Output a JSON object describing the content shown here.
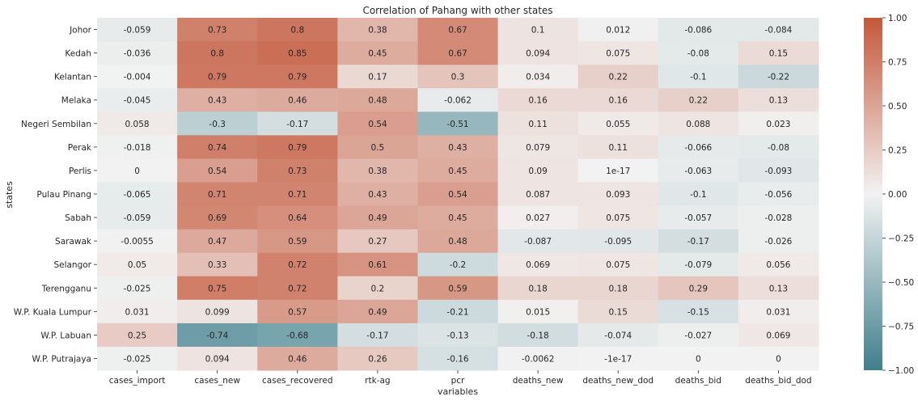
{
  "chart_data": {
    "type": "heatmap",
    "title": "Correlation of Pahang with other states",
    "xlabel": "variables",
    "ylabel": "states",
    "columns": [
      "cases_import",
      "cases_new",
      "cases_recovered",
      "rtk-ag",
      "pcr",
      "deaths_new",
      "deaths_new_dod",
      "deaths_bid",
      "deaths_bid_dod"
    ],
    "rows": [
      "Johor",
      "Kedah",
      "Kelantan",
      "Melaka",
      "Negeri Sembilan",
      "Perak",
      "Perlis",
      "Pulau Pinang",
      "Sabah",
      "Sarawak",
      "Selangor",
      "Terengganu",
      "W.P. Kuala Lumpur",
      "W.P. Labuan",
      "W.P. Putrajaya"
    ],
    "values": [
      [
        -0.059,
        0.73,
        0.8,
        0.38,
        0.67,
        0.1,
        0.012,
        -0.086,
        -0.084
      ],
      [
        -0.036,
        0.8,
        0.85,
        0.45,
        0.67,
        0.094,
        0.075,
        -0.08,
        0.15
      ],
      [
        -0.004,
        0.79,
        0.79,
        0.17,
        0.3,
        0.034,
        0.22,
        -0.1,
        -0.22
      ],
      [
        -0.045,
        0.43,
        0.46,
        0.48,
        -0.062,
        0.16,
        0.16,
        0.22,
        0.13
      ],
      [
        0.058,
        -0.3,
        -0.17,
        0.54,
        -0.51,
        0.11,
        0.055,
        0.088,
        0.023
      ],
      [
        -0.018,
        0.74,
        0.79,
        0.5,
        0.43,
        0.079,
        0.11,
        -0.066,
        -0.08
      ],
      [
        0,
        0.54,
        0.73,
        0.38,
        0.45,
        0.09,
        1e-17,
        -0.063,
        -0.093
      ],
      [
        -0.065,
        0.71,
        0.71,
        0.43,
        0.54,
        0.087,
        0.093,
        -0.1,
        -0.056
      ],
      [
        -0.059,
        0.69,
        0.64,
        0.49,
        0.45,
        0.027,
        0.075,
        -0.057,
        -0.028
      ],
      [
        -0.0055,
        0.47,
        0.59,
        0.27,
        0.48,
        -0.087,
        -0.095,
        -0.17,
        -0.026
      ],
      [
        0.05,
        0.33,
        0.72,
        0.61,
        -0.2,
        0.069,
        0.075,
        -0.079,
        0.056
      ],
      [
        -0.025,
        0.75,
        0.72,
        0.2,
        0.59,
        0.18,
        0.18,
        0.29,
        0.13
      ],
      [
        0.031,
        0.099,
        0.57,
        0.49,
        -0.21,
        0.015,
        0.15,
        -0.15,
        0.031
      ],
      [
        0.25,
        -0.74,
        -0.68,
        -0.17,
        -0.13,
        -0.18,
        -0.074,
        -0.027,
        0.069
      ],
      [
        -0.025,
        0.094,
        0.46,
        0.26,
        -0.16,
        -0.0062,
        -1e-17,
        0,
        0
      ]
    ],
    "labels": [
      [
        "-0.059",
        "0.73",
        "0.8",
        "0.38",
        "0.67",
        "0.1",
        "0.012",
        "-0.086",
        "-0.084"
      ],
      [
        "-0.036",
        "0.8",
        "0.85",
        "0.45",
        "0.67",
        "0.094",
        "0.075",
        "-0.08",
        "0.15"
      ],
      [
        "-0.004",
        "0.79",
        "0.79",
        "0.17",
        "0.3",
        "0.034",
        "0.22",
        "-0.1",
        "-0.22"
      ],
      [
        "-0.045",
        "0.43",
        "0.46",
        "0.48",
        "-0.062",
        "0.16",
        "0.16",
        "0.22",
        "0.13"
      ],
      [
        "0.058",
        "-0.3",
        "-0.17",
        "0.54",
        "-0.51",
        "0.11",
        "0.055",
        "0.088",
        "0.023"
      ],
      [
        "-0.018",
        "0.74",
        "0.79",
        "0.5",
        "0.43",
        "0.079",
        "0.11",
        "-0.066",
        "-0.08"
      ],
      [
        "0",
        "0.54",
        "0.73",
        "0.38",
        "0.45",
        "0.09",
        "1e-17",
        "-0.063",
        "-0.093"
      ],
      [
        "-0.065",
        "0.71",
        "0.71",
        "0.43",
        "0.54",
        "0.087",
        "0.093",
        "-0.1",
        "-0.056"
      ],
      [
        "-0.059",
        "0.69",
        "0.64",
        "0.49",
        "0.45",
        "0.027",
        "0.075",
        "-0.057",
        "-0.028"
      ],
      [
        "-0.0055",
        "0.47",
        "0.59",
        "0.27",
        "0.48",
        "-0.087",
        "-0.095",
        "-0.17",
        "-0.026"
      ],
      [
        "0.05",
        "0.33",
        "0.72",
        "0.61",
        "-0.2",
        "0.069",
        "0.075",
        "-0.079",
        "0.056"
      ],
      [
        "-0.025",
        "0.75",
        "0.72",
        "0.2",
        "0.59",
        "0.18",
        "0.18",
        "0.29",
        "0.13"
      ],
      [
        "0.031",
        "0.099",
        "0.57",
        "0.49",
        "-0.21",
        "0.015",
        "0.15",
        "-0.15",
        "0.031"
      ],
      [
        "0.25",
        "-0.74",
        "-0.68",
        "-0.17",
        "-0.13",
        "-0.18",
        "-0.074",
        "-0.027",
        "0.069"
      ],
      [
        "-0.025",
        "0.094",
        "0.46",
        "0.26",
        "-0.16",
        "-0.0062",
        "-1e-17",
        "0",
        "0"
      ]
    ],
    "colorbar": {
      "vmin": -1.0,
      "vmax": 1.0,
      "ticks": [
        1.0,
        0.75,
        0.5,
        0.25,
        0.0,
        -0.25,
        -0.5,
        -0.75,
        -1.0
      ],
      "tick_labels": [
        "1.00",
        "0.75",
        "0.50",
        "0.25",
        "0.00",
        "−0.25",
        "−0.50",
        "−0.75",
        "−1.00"
      ],
      "colors": {
        "low": "#3f7f8c",
        "mid": "#f2f2f2",
        "high": "#c4573a"
      }
    }
  }
}
